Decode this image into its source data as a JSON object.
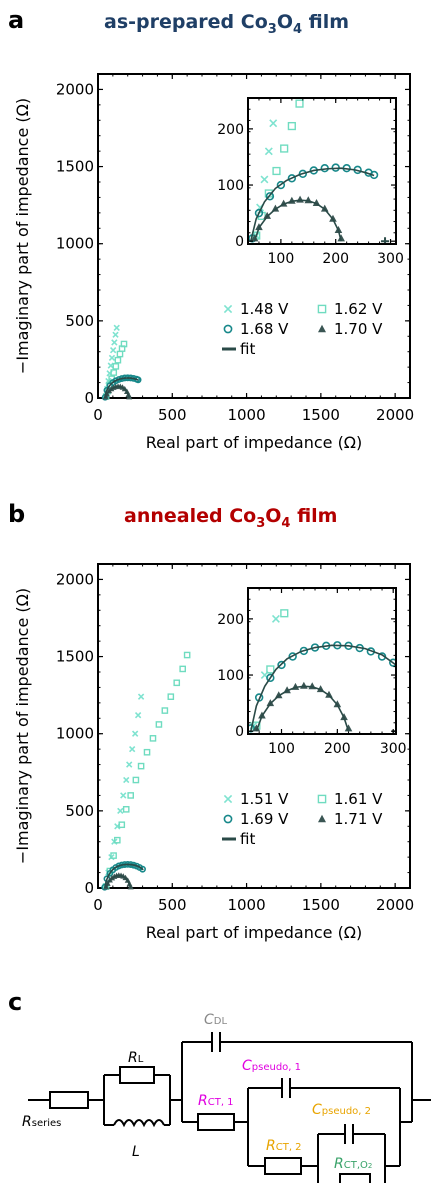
{
  "colors": {
    "c148": "#7fe3d0",
    "c162": "#6fdcc0",
    "c168": "#17888a",
    "c170": "#3a5553",
    "fit": "#2a4a47",
    "title_a": "#1f3f66",
    "title_b": "#b30000",
    "axis": "#000000",
    "magenta": "#e000e0",
    "orange": "#e8a400",
    "green": "#3aa36a",
    "gray": "#888888"
  },
  "chart_data": [
    {
      "type": "scatter",
      "panel": "a",
      "title_main": "as-prepared Co",
      "title_sub3": "3",
      "title_mid": "O",
      "title_sub4": "4",
      "title_end": " film",
      "xlabel": "Real part of impedance (Ω)",
      "ylabel": "−Imaginary part of impedance (Ω)",
      "xlim": [
        0,
        2100
      ],
      "ylim": [
        0,
        2100
      ],
      "xticks": [
        "0",
        "500",
        "1000",
        "1500",
        "2000"
      ],
      "yticks": [
        "0",
        "500",
        "1000",
        "1500",
        "2000"
      ],
      "inset": {
        "xlim": [
          40,
          310
        ],
        "ylim": [
          -5,
          255
        ],
        "xticks": [
          "100",
          "200",
          "300"
        ],
        "yticks": [
          "0",
          "100",
          "200"
        ],
        "legend_position": "lower-right"
      },
      "series": [
        {
          "name": "1.48 V",
          "marker": "x",
          "color_key": "c148",
          "x": [
            55,
            62,
            70,
            78,
            86,
            94,
            102,
            110,
            118,
            126
          ],
          "y": [
            10,
            60,
            110,
            160,
            210,
            260,
            310,
            360,
            410,
            455
          ]
        },
        {
          "name": "1.62 V",
          "marker": "square",
          "color_key": "c162",
          "x": [
            55,
            65,
            78,
            92,
            106,
            120,
            134,
            148,
            162,
            175
          ],
          "y": [
            10,
            45,
            85,
            125,
            165,
            205,
            245,
            285,
            320,
            350
          ]
        },
        {
          "name": "1.68 V",
          "marker": "circle",
          "color_key": "c168",
          "x": [
            48,
            60,
            80,
            100,
            120,
            140,
            160,
            180,
            200,
            220,
            240,
            260,
            270
          ],
          "y": [
            5,
            50,
            80,
            100,
            112,
            120,
            126,
            130,
            131,
            130,
            127,
            122,
            118
          ]
        },
        {
          "name": "1.70 V",
          "marker": "triangle",
          "color_key": "c170",
          "x": [
            52,
            60,
            75,
            90,
            105,
            120,
            135,
            150,
            165,
            180,
            195,
            205,
            210
          ],
          "y": [
            5,
            25,
            45,
            58,
            67,
            72,
            74,
            73,
            68,
            58,
            40,
            20,
            5
          ]
        },
        {
          "name": "",
          "marker": "plus",
          "color_key": "fit",
          "x": [
            290
          ],
          "y": [
            0
          ]
        }
      ],
      "fit_label": "fit",
      "fit_curves": [
        {
          "x": [
            45,
            55,
            70,
            90,
            110,
            135,
            160,
            185,
            210,
            235,
            255,
            270
          ],
          "y": [
            0,
            40,
            70,
            94,
            108,
            119,
            126,
            129,
            130,
            127,
            122,
            117
          ],
          "color_key": "c168"
        },
        {
          "x": [
            52,
            60,
            75,
            90,
            105,
            120,
            135,
            150,
            165,
            180,
            195,
            205,
            210
          ],
          "y": [
            0,
            24,
            44,
            57,
            66,
            71,
            73,
            72,
            67,
            57,
            39,
            19,
            0
          ],
          "color_key": "c170"
        }
      ],
      "legend_position": "lower-right"
    },
    {
      "type": "scatter",
      "panel": "b",
      "title_main": "annealed Co",
      "title_sub3": "3",
      "title_mid": "O",
      "title_sub4": "4",
      "title_end": " film",
      "xlabel": "Real part of impedance (Ω)",
      "ylabel": "−Imaginary part of impedance (Ω)",
      "xlim": [
        0,
        2100
      ],
      "ylim": [
        0,
        2100
      ],
      "xticks": [
        "0",
        "500",
        "1000",
        "1500",
        "2000"
      ],
      "yticks": [
        "0",
        "500",
        "1000",
        "1500",
        "2000"
      ],
      "inset": {
        "xlim": [
          40,
          305
        ],
        "ylim": [
          -5,
          255
        ],
        "xticks": [
          "100",
          "200",
          "300"
        ],
        "yticks": [
          "0",
          "100",
          "200"
        ],
        "legend_position": "lower-right"
      },
      "series": [
        {
          "name": "1.51 V",
          "marker": "x",
          "color_key": "c148",
          "x": [
            50,
            70,
            90,
            110,
            130,
            150,
            170,
            190,
            210,
            230,
            250,
            270,
            290
          ],
          "y": [
            10,
            100,
            200,
            300,
            400,
            500,
            600,
            700,
            800,
            900,
            1000,
            1120,
            1240
          ]
        },
        {
          "name": "1.61 V",
          "marker": "square",
          "color_key": "c162",
          "x": [
            55,
            80,
            105,
            130,
            160,
            190,
            220,
            255,
            290,
            330,
            370,
            410,
            450,
            490,
            530,
            570,
            600
          ],
          "y": [
            10,
            110,
            210,
            310,
            410,
            510,
            600,
            700,
            790,
            880,
            970,
            1060,
            1150,
            1240,
            1330,
            1420,
            1510
          ]
        },
        {
          "name": "1.69 V",
          "marker": "circle",
          "color_key": "c168",
          "x": [
            45,
            60,
            80,
            100,
            120,
            140,
            160,
            180,
            200,
            220,
            240,
            260,
            280,
            300
          ],
          "y": [
            5,
            60,
            95,
            118,
            133,
            143,
            149,
            152,
            153,
            152,
            148,
            142,
            133,
            122
          ]
        },
        {
          "name": "1.71 V",
          "marker": "triangle",
          "color_key": "c170",
          "x": [
            55,
            65,
            80,
            95,
            110,
            125,
            140,
            155,
            170,
            185,
            200,
            212,
            220
          ],
          "y": [
            5,
            28,
            50,
            64,
            73,
            79,
            81,
            80,
            75,
            65,
            48,
            25,
            5
          ]
        },
        {
          "name": "",
          "marker": "plus",
          "color_key": "fit",
          "x": [
            305
          ],
          "y": [
            0
          ]
        }
      ],
      "fit_label": "fit",
      "fit_curves": [
        {
          "x": [
            45,
            55,
            70,
            90,
            110,
            135,
            160,
            190,
            220,
            250,
            280,
            305
          ],
          "y": [
            0,
            45,
            80,
            110,
            129,
            142,
            149,
            153,
            152,
            147,
            136,
            118
          ],
          "color_key": "c168"
        },
        {
          "x": [
            55,
            65,
            80,
            95,
            110,
            125,
            140,
            155,
            170,
            185,
            200,
            212,
            220
          ],
          "y": [
            0,
            27,
            49,
            63,
            72,
            78,
            80,
            79,
            74,
            64,
            47,
            24,
            0
          ],
          "color_key": "c170"
        }
      ],
      "legend_position": "lower-right"
    }
  ],
  "panels": {
    "a": "a",
    "b": "b",
    "c": "c"
  },
  "circuit": {
    "r_series": "R",
    "r_series_sub": "series",
    "r_l": "R",
    "r_l_sub": "L",
    "l": "L",
    "c_dl": "C",
    "c_dl_sub": "DL",
    "c_pseudo1": "C",
    "c_pseudo1_sub": "pseudo, 1",
    "r_ct1": "R",
    "r_ct1_sub": "CT, 1",
    "c_pseudo2": "C",
    "c_pseudo2_sub": "pseudo, 2",
    "r_ct2": "R",
    "r_ct2_sub": "CT, 2",
    "r_cto2": "R",
    "r_cto2_sub": "CT,O",
    "r_cto2_sub2": "2"
  }
}
